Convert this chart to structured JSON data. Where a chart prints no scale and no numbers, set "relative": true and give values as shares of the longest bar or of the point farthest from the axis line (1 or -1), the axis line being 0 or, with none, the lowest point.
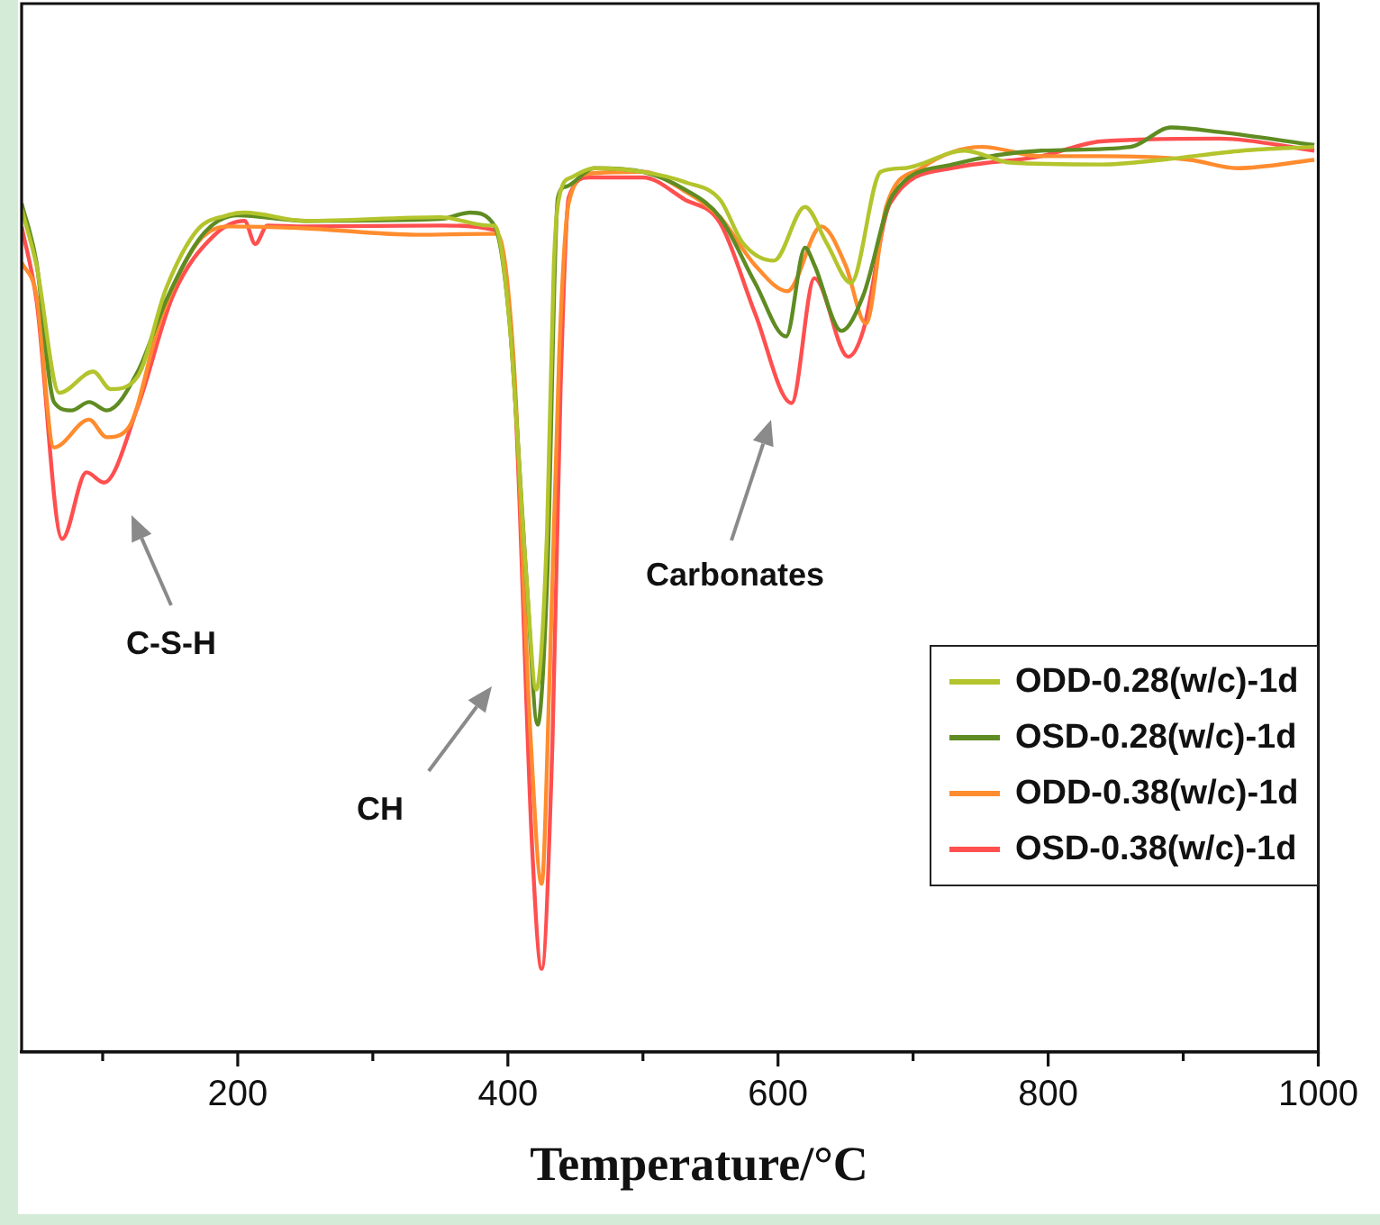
{
  "chart_data": {
    "type": "line",
    "relative": true,
    "xlabel": "Temperature/°C",
    "xlim": [
      40,
      1000
    ],
    "xticks": [
      {
        "value": 100,
        "label": null
      },
      200,
      {
        "value": 300,
        "label": null
      },
      400,
      {
        "value": 500,
        "label": null
      },
      600,
      {
        "value": 700,
        "label": null
      },
      800,
      {
        "value": 900,
        "label": null
      },
      1000
    ],
    "legend": "bottom right",
    "annotations": [
      "C-S-H",
      "CH",
      "Carbonates"
    ],
    "series": [
      {
        "name": "ODD-0.28(w/c)-1d",
        "color": "#b3c42c",
        "x": [
          40,
          51,
          68,
          93,
          106,
          126,
          147,
          170,
          192,
          205,
          250,
          350,
          385,
          390,
          401,
          414,
          421,
          429,
          434,
          439,
          447,
          464,
          500,
          531,
          557,
          574,
          597,
          620,
          636,
          654,
          676,
          693,
          738,
          772,
          839,
          884,
          944,
          997
        ],
        "values": [
          0.912,
          0.851,
          0.713,
          0.736,
          0.717,
          0.731,
          0.826,
          0.889,
          0.905,
          0.908,
          0.899,
          0.903,
          0.894,
          0.894,
          0.793,
          0.507,
          0.392,
          0.564,
          0.851,
          0.931,
          0.946,
          0.956,
          0.952,
          0.941,
          0.922,
          0.875,
          0.856,
          0.914,
          0.875,
          0.832,
          0.952,
          0.956,
          0.975,
          0.962,
          0.96,
          0.965,
          0.975,
          0.979
        ]
      },
      {
        "name": "OSD-0.28(w/c)-1d",
        "color": "#5f8c22",
        "x": [
          40,
          51,
          64,
          77,
          90,
          103,
          126,
          147,
          174,
          200,
          250,
          350,
          372,
          390,
          401,
          414,
          422,
          429,
          437,
          443,
          464,
          500,
          531,
          557,
          583,
          606,
          620,
          627,
          647,
          663,
          685,
          729,
          795,
          861,
          891,
          927,
          997
        ],
        "values": [
          0.918,
          0.854,
          0.703,
          0.694,
          0.703,
          0.694,
          0.736,
          0.813,
          0.884,
          0.905,
          0.899,
          0.901,
          0.908,
          0.894,
          0.793,
          0.507,
          0.354,
          0.507,
          0.924,
          0.936,
          0.956,
          0.952,
          0.933,
          0.903,
          0.832,
          0.774,
          0.87,
          0.851,
          0.78,
          0.818,
          0.927,
          0.96,
          0.975,
          0.979,
          1.0,
          0.995,
          0.981
        ]
      },
      {
        "name": "ODD-0.38(w/c)-1d",
        "color": "#ff8c2e",
        "x": [
          40,
          51,
          64,
          90,
          103,
          119,
          143,
          170,
          192,
          250,
          332,
          385,
          392,
          404,
          417,
          425,
          431,
          438,
          445,
          460,
          500,
          531,
          557,
          583,
          607,
          632,
          650,
          665,
          680,
          706,
          751,
          795,
          839,
          905,
          940,
          997
        ],
        "values": [
          0.854,
          0.818,
          0.654,
          0.684,
          0.665,
          0.675,
          0.793,
          0.875,
          0.893,
          0.891,
          0.884,
          0.885,
          0.885,
          0.755,
          0.335,
          0.182,
          0.411,
          0.755,
          0.918,
          0.95,
          0.952,
          0.931,
          0.903,
          0.851,
          0.823,
          0.893,
          0.851,
          0.788,
          0.914,
          0.956,
          0.979,
          0.969,
          0.969,
          0.965,
          0.956,
          0.965
        ]
      },
      {
        "name": "OSD-0.38(w/c)-1d",
        "color": "#ff4f4f",
        "x": [
          40,
          51,
          70,
          88,
          101,
          126,
          152,
          183,
          205,
          213,
          222,
          250,
          350,
          390,
          405,
          418,
          425,
          433,
          439,
          445,
          460,
          500,
          531,
          557,
          583,
          610,
          627,
          652,
          663,
          683,
          729,
          795,
          839,
          927,
          997
        ],
        "values": [
          0.893,
          0.813,
          0.555,
          0.627,
          0.616,
          0.698,
          0.818,
          0.884,
          0.899,
          0.874,
          0.894,
          0.893,
          0.894,
          0.889,
          0.717,
          0.22,
          0.09,
          0.335,
          0.717,
          0.924,
          0.946,
          0.946,
          0.922,
          0.897,
          0.799,
          0.702,
          0.837,
          0.752,
          0.78,
          0.918,
          0.956,
          0.969,
          0.985,
          0.988,
          0.975
        ]
      }
    ]
  }
}
